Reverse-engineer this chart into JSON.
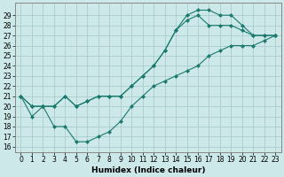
{
  "bg_color": "#cce8e8",
  "grid_color": "#aacccc",
  "line_color": "#1a7a6e",
  "xlabel": "Humidex (Indice chaleur)",
  "xlim": [
    -0.5,
    23.5
  ],
  "ylim": [
    15.5,
    30.2
  ],
  "xticks": [
    0,
    1,
    2,
    3,
    4,
    5,
    6,
    7,
    8,
    9,
    10,
    11,
    12,
    13,
    14,
    15,
    16,
    17,
    18,
    19,
    20,
    21,
    22,
    23
  ],
  "yticks": [
    16,
    17,
    18,
    19,
    20,
    21,
    22,
    23,
    24,
    25,
    26,
    27,
    28,
    29
  ],
  "curve_upper": [
    21,
    20,
    20,
    20,
    21,
    20,
    20.5,
    21,
    21,
    21,
    22,
    23,
    24,
    25.5,
    27.5,
    29,
    29.5,
    29.5,
    29,
    29,
    28,
    27,
    27,
    27
  ],
  "curve_mid": [
    21,
    20,
    20,
    20,
    21,
    20,
    20.5,
    21,
    21,
    21,
    22,
    23,
    24,
    25.5,
    27.5,
    28.5,
    29,
    28,
    28,
    28,
    27.5,
    27,
    27,
    27
  ],
  "curve_low": [
    21,
    19,
    20,
    18,
    18,
    16.5,
    16.5,
    17,
    17.5,
    18.5,
    20,
    21,
    22,
    22.5,
    23,
    23.5,
    24,
    25,
    25.5,
    26,
    26,
    26,
    26.5,
    27
  ],
  "marker": "D",
  "markersize": 2.0,
  "linewidth": 0.8,
  "tick_fontsize": 5.5,
  "xlabel_fontsize": 6.5
}
